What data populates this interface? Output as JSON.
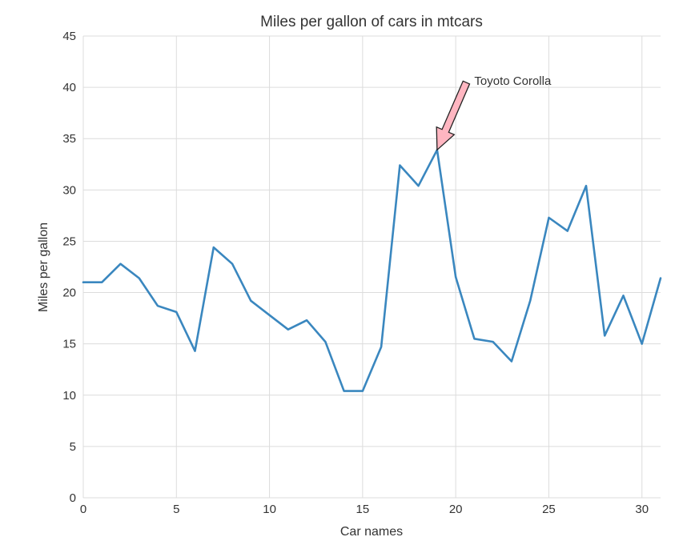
{
  "chart_data": {
    "type": "line",
    "title": "Miles per gallon of cars in mtcars",
    "xlabel": "Car names",
    "ylabel": "Miles per gallon",
    "xlim": [
      0,
      31
    ],
    "ylim": [
      0,
      45
    ],
    "xticks": [
      0,
      5,
      10,
      15,
      20,
      25,
      30
    ],
    "yticks": [
      0,
      5,
      10,
      15,
      20,
      25,
      30,
      35,
      40,
      45
    ],
    "grid": true,
    "series": [
      {
        "color": "#3a87bf",
        "x": [
          0,
          1,
          2,
          3,
          4,
          5,
          6,
          7,
          8,
          9,
          10,
          11,
          12,
          13,
          14,
          15,
          16,
          17,
          18,
          19,
          20,
          21,
          22,
          23,
          24,
          25,
          26,
          27,
          28,
          29,
          30,
          31
        ],
        "values": [
          21.0,
          21.0,
          22.8,
          21.4,
          18.7,
          18.1,
          14.3,
          24.4,
          22.8,
          19.2,
          17.8,
          16.4,
          17.3,
          15.2,
          10.4,
          10.4,
          14.7,
          32.4,
          30.4,
          33.9,
          21.5,
          15.5,
          15.2,
          13.3,
          19.2,
          27.3,
          26.0,
          30.4,
          15.8,
          19.7,
          15.0,
          21.4
        ]
      }
    ],
    "annotations": [
      {
        "text": "Toyoto Corolla",
        "point": [
          19,
          33.9
        ],
        "text_position": [
          21,
          40
        ],
        "arrow_facecolor": "#ffb6c1",
        "arrow_edgecolor": "#222222"
      }
    ]
  }
}
